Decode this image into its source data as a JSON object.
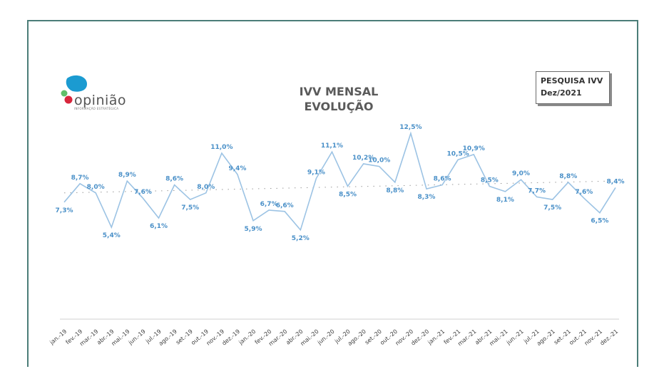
{
  "logo": {
    "brand": "opinião",
    "tagline": "INFORMAÇÃO ESTRATÉGICA"
  },
  "chart_title": {
    "line1": "IVV MENSAL",
    "line2": "EVOLUÇÃO"
  },
  "badge": {
    "line1": "PESQUISA IVV",
    "line2": "Dez/2021"
  },
  "colors": {
    "line": "#9cc3e4",
    "label": "#4a90c8",
    "avg": "#9a9a9a",
    "frame": "#4b7d78"
  },
  "chart_data": {
    "type": "line",
    "title": "IVV MENSAL EVOLUÇÃO",
    "categories": [
      "jan.-19",
      "fev.-19",
      "mar.-19",
      "abr.-19",
      "mai.-19",
      "jun.-19",
      "jul.-19",
      "ago.-19",
      "set.-19",
      "out.-19",
      "nov.-19",
      "dez.-19",
      "jan.-20",
      "fev.-20",
      "mar.-20",
      "abr.-20",
      "mai.-20",
      "jun.-20",
      "jul.-20",
      "ago.-20",
      "set.-20",
      "out.-20",
      "nov.-20",
      "dez.-20",
      "jan.-21",
      "fev.-21",
      "mar.-21",
      "abr.-21",
      "mai.-21",
      "jun.-21",
      "jul.-21",
      "ago.-21",
      "set.-21",
      "out.-21",
      "nov.-21",
      "dez.-21"
    ],
    "series": [
      {
        "values": [
          7.3,
          8.7,
          8.0,
          5.4,
          8.9,
          7.6,
          6.1,
          8.6,
          7.5,
          8.0,
          11.0,
          9.4,
          5.9,
          6.7,
          6.6,
          5.2,
          9.1,
          11.1,
          8.5,
          10.2,
          10.0,
          8.8,
          12.5,
          8.3,
          8.6,
          10.5,
          10.9,
          8.5,
          8.1,
          9.0,
          7.7,
          7.5,
          8.8,
          7.6,
          6.5,
          8.4
        ],
        "labels": [
          "7,3%",
          "8,7%",
          "8,0%",
          "5,4%",
          "8,9%",
          "7,6%",
          "6,1%",
          "8,6%",
          "7,5%",
          "8,0%",
          "11,0%",
          "9,4%",
          "5,9%",
          "6,7%",
          "6,6%",
          "5,2%",
          "9,1%",
          "11,1%",
          "8,5%",
          "10,2%",
          "10,0%",
          "8,8%",
          "12,5%",
          "8,3%",
          "8,6%",
          "10,5%",
          "10,9%",
          "8,5%",
          "8,1%",
          "9,0%",
          "7,7%",
          "7,5%",
          "8,8%",
          "7,6%",
          "6,5%",
          "8,4%"
        ]
      }
    ],
    "reference_line": {
      "style": "dotted",
      "from": 8.0,
      "to": 8.9
    },
    "ylim": [
      3.2,
      14.5
    ],
    "grid": false,
    "legend": "none"
  }
}
